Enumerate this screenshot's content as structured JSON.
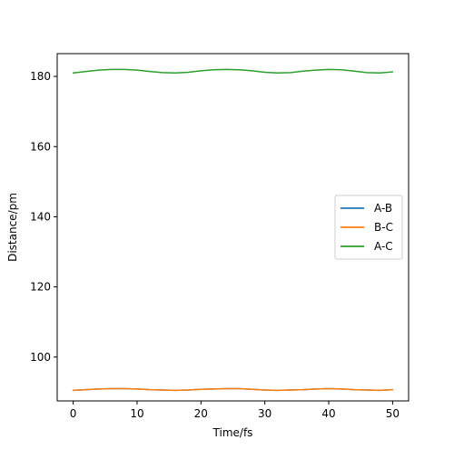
{
  "chart_data": {
    "type": "line",
    "title": "",
    "xlabel": "Time/fs",
    "ylabel": "Distance/pm",
    "xlim": [
      -2.5,
      52.5
    ],
    "ylim": [
      87.5,
      186.5
    ],
    "xticks": [
      0,
      10,
      20,
      30,
      40,
      50
    ],
    "yticks": [
      100,
      120,
      140,
      160,
      180
    ],
    "grid": false,
    "legend_position": "right",
    "x": [
      0,
      2,
      4,
      6,
      8,
      10,
      12,
      14,
      16,
      18,
      20,
      22,
      24,
      26,
      28,
      30,
      32,
      34,
      36,
      38,
      40,
      42,
      44,
      46,
      48,
      50
    ],
    "series": [
      {
        "name": "A-B",
        "color": "#1f77b4",
        "values": [
          90.5,
          90.7,
          90.9,
          91.0,
          91.0,
          90.9,
          90.7,
          90.6,
          90.5,
          90.6,
          90.8,
          90.9,
          91.0,
          91.0,
          90.8,
          90.6,
          90.5,
          90.6,
          90.7,
          90.9,
          91.0,
          90.9,
          90.7,
          90.6,
          90.5,
          90.7
        ]
      },
      {
        "name": "B-C",
        "color": "#ff7f0e",
        "values": [
          90.5,
          90.7,
          90.9,
          91.0,
          91.0,
          90.9,
          90.7,
          90.6,
          90.5,
          90.6,
          90.8,
          90.9,
          91.0,
          91.0,
          90.8,
          90.6,
          90.5,
          90.6,
          90.7,
          90.9,
          91.0,
          90.9,
          90.7,
          90.6,
          90.5,
          90.7
        ]
      },
      {
        "name": "A-C",
        "color": "#2ca02c",
        "values": [
          181.0,
          181.4,
          181.8,
          182.0,
          182.0,
          181.8,
          181.4,
          181.1,
          181.0,
          181.2,
          181.6,
          181.9,
          182.0,
          181.9,
          181.6,
          181.2,
          181.0,
          181.1,
          181.5,
          181.8,
          182.0,
          181.9,
          181.5,
          181.1,
          181.0,
          181.3
        ]
      }
    ]
  }
}
